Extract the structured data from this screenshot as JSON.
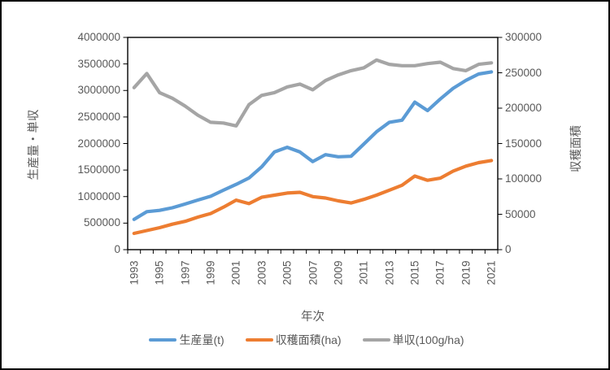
{
  "colors": {
    "production": "#5B9BD5",
    "area": "#ED7D31",
    "yield": "#A5A5A5",
    "axis_text": "#595959",
    "axis_line": "#000000",
    "figure_border": "#000000",
    "background": "#FFFFFF"
  },
  "chart_data": {
    "type": "line",
    "x": [
      1993,
      1994,
      1995,
      1996,
      1997,
      1998,
      1999,
      2000,
      2001,
      2002,
      2003,
      2004,
      2005,
      2006,
      2007,
      2008,
      2009,
      2010,
      2011,
      2012,
      2013,
      2014,
      2015,
      2016,
      2017,
      2018,
      2019,
      2020,
      2021
    ],
    "x_tick_labels": [
      "1993",
      "1995",
      "1997",
      "1999",
      "2001",
      "2003",
      "2005",
      "2007",
      "2009",
      "2011",
      "2013",
      "2015",
      "2017",
      "2019",
      "2021"
    ],
    "xlabel": "年次",
    "left_axis": {
      "title": "生産量・単収",
      "min": 0,
      "max": 4000000,
      "step": 500000,
      "tick_labels": [
        "0",
        "500000",
        "1000000",
        "1500000",
        "2000000",
        "2500000",
        "3000000",
        "3500000",
        "4000000"
      ]
    },
    "right_axis": {
      "title": "収穫面積",
      "min": 0,
      "max": 300000,
      "step": 50000,
      "tick_labels": [
        "0",
        "50000",
        "100000",
        "150000",
        "200000",
        "250000",
        "300000"
      ]
    },
    "legend_position": "bottom",
    "grid": false,
    "series": [
      {
        "key": "production",
        "name": "生産量(t)",
        "axis": "left",
        "color": "#5B9BD5",
        "values": [
          570000,
          715000,
          740000,
          790000,
          860000,
          935000,
          1005000,
          1120000,
          1230000,
          1350000,
          1560000,
          1840000,
          1930000,
          1840000,
          1660000,
          1790000,
          1750000,
          1760000,
          1990000,
          2220000,
          2400000,
          2440000,
          2780000,
          2620000,
          2840000,
          3040000,
          3190000,
          3310000,
          3350000
        ]
      },
      {
        "key": "area",
        "name": "収穫面積(ha)",
        "axis": "right",
        "color": "#ED7D31",
        "values": [
          23000,
          27000,
          31000,
          36000,
          40000,
          46000,
          51000,
          60000,
          70000,
          65000,
          74000,
          77000,
          80000,
          81000,
          75000,
          73000,
          69000,
          66000,
          71000,
          77000,
          84000,
          91000,
          104000,
          98000,
          101000,
          111000,
          118000,
          123000,
          126000
        ]
      },
      {
        "key": "yield",
        "name": "単収(100g/ha)",
        "axis": "right",
        "color": "#A5A5A5",
        "values": [
          229000,
          249000,
          222000,
          214000,
          203000,
          190000,
          180000,
          179000,
          175000,
          205000,
          218000,
          222000,
          230000,
          234000,
          226000,
          239000,
          247000,
          253000,
          257000,
          268000,
          262000,
          260000,
          260000,
          263000,
          265000,
          256000,
          253000,
          262000,
          264000
        ]
      }
    ]
  }
}
